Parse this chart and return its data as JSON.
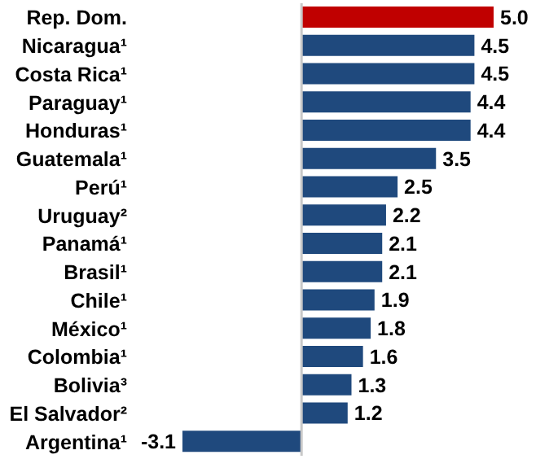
{
  "chart_data": {
    "type": "bar",
    "orientation": "horizontal",
    "categories": [
      "Rep. Dom.",
      "Nicaragua¹",
      "Costa Rica¹",
      "Paraguay¹",
      "Honduras¹",
      "Guatemala¹",
      "Perú¹",
      "Uruguay²",
      "Panamá¹",
      "Brasil¹",
      "Chile¹",
      "México¹",
      "Colombia¹",
      "Bolivia³",
      "El Salvador²",
      "Argentina¹"
    ],
    "values": [
      5.0,
      4.5,
      4.5,
      4.4,
      4.4,
      3.5,
      2.5,
      2.2,
      2.1,
      2.1,
      1.9,
      1.8,
      1.6,
      1.3,
      1.2,
      -3.1
    ],
    "value_labels": [
      "5.0",
      "4.5",
      "4.5",
      "4.4",
      "4.4",
      "3.5",
      "2.5",
      "2.2",
      "2.1",
      "2.1",
      "1.9",
      "1.8",
      "1.6",
      "1.3",
      "1.2",
      "-3.1"
    ],
    "colors": [
      "#c00000",
      "#1f497d",
      "#1f497d",
      "#1f497d",
      "#1f497d",
      "#1f497d",
      "#1f497d",
      "#1f497d",
      "#1f497d",
      "#1f497d",
      "#1f497d",
      "#1f497d",
      "#1f497d",
      "#1f497d",
      "#1f497d",
      "#1f497d"
    ],
    "grid": false,
    "legend": false
  }
}
